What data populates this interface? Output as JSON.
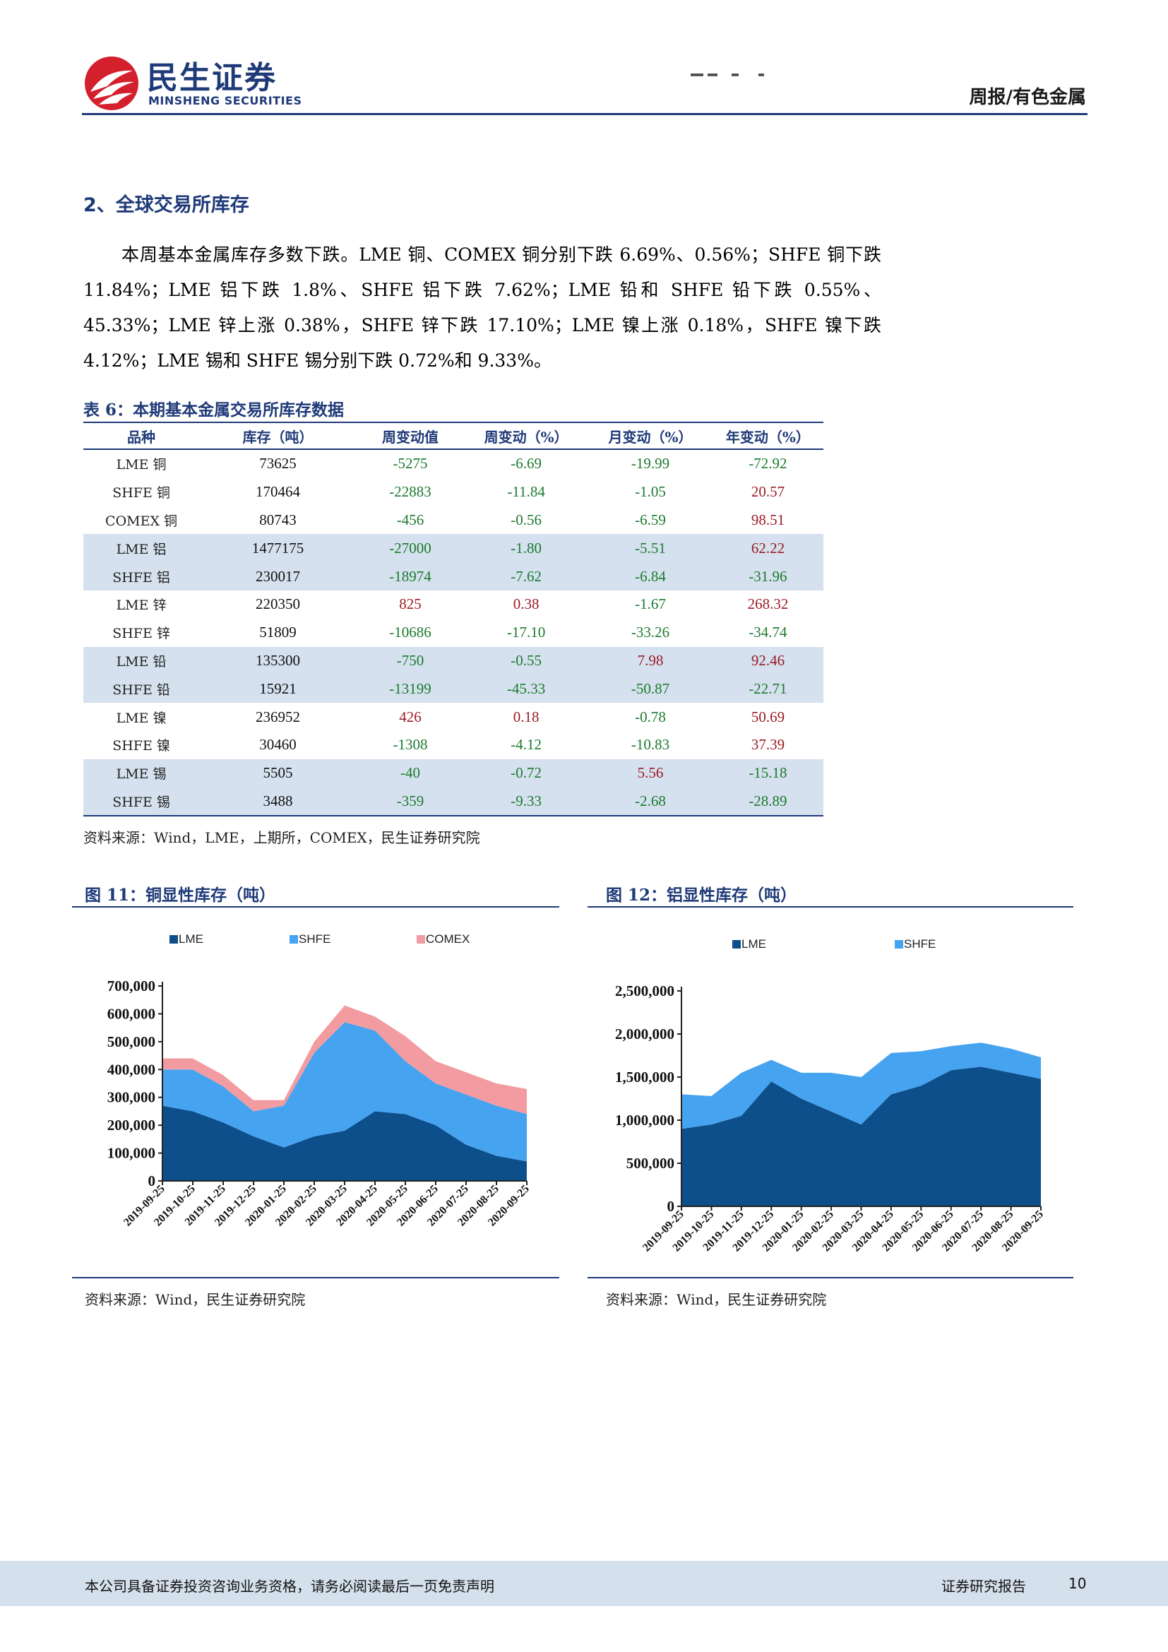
{
  "header": {
    "brand_cn": "民生证券",
    "brand_en": "MINSHENG SECURITIES",
    "category": "周报/有色金属",
    "colors": {
      "brand_blue": "#1f3a78",
      "brand_red": "#d4202c"
    },
    "logo_icon": "minsheng-logo-icon"
  },
  "section": {
    "title": "2、全球交易所库存",
    "paragraph": "本周基本金属库存多数下跌。LME 铜、COMEX 铜分别下跌 6.69%、0.56%；SHFE 铜下跌 11.84%；LME 铝下跌 1.8%、SHFE 铝下跌 7.62%；LME 铅和 SHFE 铅下跌 0.55%、45.33%；LME 锌上涨 0.38%，SHFE 锌下跌 17.10%；LME 镍上涨 0.18%，SHFE 镍下跌 4.12%；LME 锡和 SHFE 锡分别下跌 0.72%和 9.33%。"
  },
  "table": {
    "title": "表 6：本期基本金属交易所库存数据",
    "headers": [
      "品种",
      "库存（吨）",
      "周变动值",
      "周变动（%）",
      "月变动（%）",
      "年变动（%）"
    ],
    "rows": [
      {
        "name": "LME 铜",
        "stock": "73625",
        "weekly_change": "-5275",
        "weekly_pct": "-6.69",
        "monthly_pct": "-19.99",
        "yearly_pct": "-72.92",
        "shaded": false
      },
      {
        "name": "SHFE 铜",
        "stock": "170464",
        "weekly_change": "-22883",
        "weekly_pct": "-11.84",
        "monthly_pct": "-1.05",
        "yearly_pct": "20.57",
        "shaded": false
      },
      {
        "name": "COMEX 铜",
        "stock": "80743",
        "weekly_change": "-456",
        "weekly_pct": "-0.56",
        "monthly_pct": "-6.59",
        "yearly_pct": "98.51",
        "shaded": false
      },
      {
        "name": "LME 铝",
        "stock": "1477175",
        "weekly_change": "-27000",
        "weekly_pct": "-1.80",
        "monthly_pct": "-5.51",
        "yearly_pct": "62.22",
        "shaded": true
      },
      {
        "name": "SHFE 铝",
        "stock": "230017",
        "weekly_change": "-18974",
        "weekly_pct": "-7.62",
        "monthly_pct": "-6.84",
        "yearly_pct": "-31.96",
        "shaded": true
      },
      {
        "name": "LME 锌",
        "stock": "220350",
        "weekly_change": "825",
        "weekly_pct": "0.38",
        "monthly_pct": "-1.67",
        "yearly_pct": "268.32",
        "shaded": false
      },
      {
        "name": "SHFE 锌",
        "stock": "51809",
        "weekly_change": "-10686",
        "weekly_pct": "-17.10",
        "monthly_pct": "-33.26",
        "yearly_pct": "-34.74",
        "shaded": false
      },
      {
        "name": "LME 铅",
        "stock": "135300",
        "weekly_change": "-750",
        "weekly_pct": "-0.55",
        "monthly_pct": "7.98",
        "yearly_pct": "92.46",
        "shaded": true
      },
      {
        "name": "SHFE 铅",
        "stock": "15921",
        "weekly_change": "-13199",
        "weekly_pct": "-45.33",
        "monthly_pct": "-50.87",
        "yearly_pct": "-22.71",
        "shaded": true
      },
      {
        "name": "LME 镍",
        "stock": "236952",
        "weekly_change": "426",
        "weekly_pct": "0.18",
        "monthly_pct": "-0.78",
        "yearly_pct": "50.69",
        "shaded": false
      },
      {
        "name": "SHFE 镍",
        "stock": "30460",
        "weekly_change": "-1308",
        "weekly_pct": "-4.12",
        "monthly_pct": "-10.83",
        "yearly_pct": "37.39",
        "shaded": false
      },
      {
        "name": "LME 锡",
        "stock": "5505",
        "weekly_change": "-40",
        "weekly_pct": "-0.72",
        "monthly_pct": "5.56",
        "yearly_pct": "-15.18",
        "shaded": true
      },
      {
        "name": "SHFE 锡",
        "stock": "3488",
        "weekly_change": "-359",
        "weekly_pct": "-9.33",
        "monthly_pct": "-2.68",
        "yearly_pct": "-28.89",
        "shaded": true
      }
    ],
    "source": "资料来源：Wind，LME，上期所，COMEX，民生证券研究院",
    "colors": {
      "negative": "#1c7a2e",
      "positive": "#9b1b24",
      "shade": "#d5e1ee"
    }
  },
  "figures": {
    "fig11": {
      "title": "图 11：铜显性库存（吨）",
      "source": "资料来源：Wind，民生证券研究院"
    },
    "fig12": {
      "title": "图 12：铝显性库存（吨）",
      "source": "资料来源：Wind，民生证券研究院"
    }
  },
  "chart_data": [
    {
      "type": "area",
      "stacked": true,
      "title": "",
      "x": [
        "2019-09-25",
        "2019-10-25",
        "2019-11-25",
        "2019-12-25",
        "2020-01-25",
        "2020-02-25",
        "2020-03-25",
        "2020-04-25",
        "2020-05-25",
        "2020-06-25",
        "2020-07-25",
        "2020-08-25",
        "2020-09-25"
      ],
      "series": [
        {
          "name": "LME",
          "color": "#0d4f8b",
          "values": [
            270000,
            250000,
            210000,
            160000,
            120000,
            160000,
            180000,
            250000,
            240000,
            200000,
            130000,
            90000,
            70000
          ]
        },
        {
          "name": "SHFE",
          "color": "#46a3f0",
          "values": [
            130000,
            150000,
            130000,
            90000,
            150000,
            300000,
            390000,
            290000,
            190000,
            150000,
            180000,
            180000,
            170000
          ]
        },
        {
          "name": "COMEX",
          "color": "#f29ba0",
          "values": [
            40000,
            40000,
            40000,
            40000,
            20000,
            40000,
            60000,
            50000,
            90000,
            80000,
            80000,
            80000,
            90000
          ]
        }
      ],
      "y_ticks": [
        "0",
        "100,000",
        "200,000",
        "300,000",
        "400,000",
        "500,000",
        "600,000",
        "700,000"
      ],
      "ylim": [
        0,
        700000
      ],
      "legend": "top",
      "grid": false
    },
    {
      "type": "area",
      "stacked": true,
      "title": "",
      "x": [
        "2019-09-25",
        "2019-10-25",
        "2019-11-25",
        "2019-12-25",
        "2020-01-25",
        "2020-02-25",
        "2020-03-25",
        "2020-04-25",
        "2020-05-25",
        "2020-06-25",
        "2020-07-25",
        "2020-08-25",
        "2020-09-25"
      ],
      "series": [
        {
          "name": "LME",
          "color": "#0d4f8b",
          "values": [
            900000,
            950000,
            1050000,
            1450000,
            1250000,
            1100000,
            950000,
            1300000,
            1400000,
            1580000,
            1620000,
            1550000,
            1480000
          ]
        },
        {
          "name": "SHFE",
          "color": "#46a3f0",
          "values": [
            400000,
            330000,
            500000,
            250000,
            300000,
            450000,
            550000,
            480000,
            400000,
            280000,
            280000,
            280000,
            250000
          ]
        }
      ],
      "y_ticks": [
        "0",
        "500,000",
        "1,000,000",
        "1,500,000",
        "2,000,000",
        "2,500,000"
      ],
      "ylim": [
        0,
        2500000
      ],
      "legend": "top",
      "grid": false
    }
  ],
  "footer": {
    "disclaimer": "本公司具备证券投资咨询业务资格，请务必阅读最后一页免责声明",
    "report_type": "证券研究报告",
    "page_number": "10"
  }
}
